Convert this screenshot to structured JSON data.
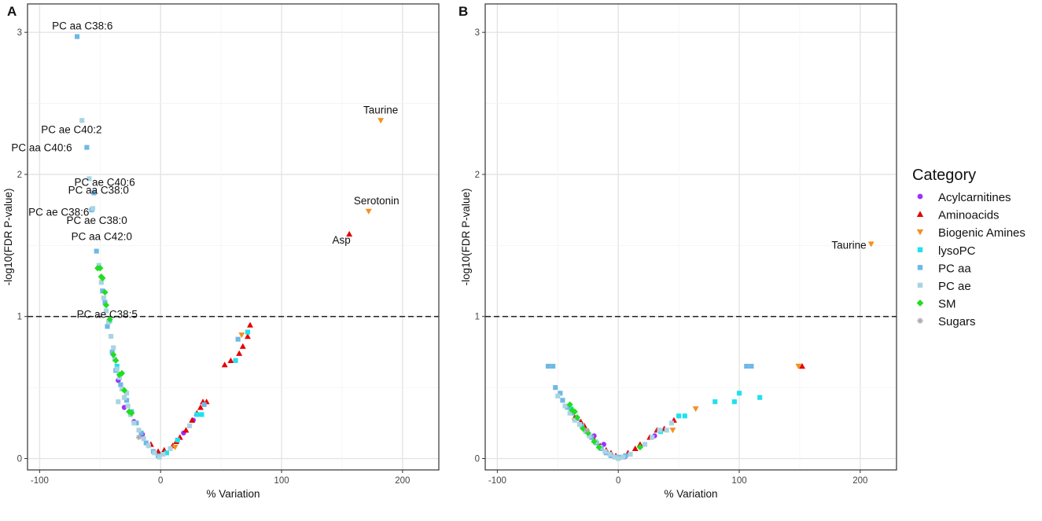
{
  "legend": {
    "title": "Category",
    "entries": [
      {
        "key": "Acylcarnitines",
        "label": "Acylcarnitines",
        "color": "#9B30FF",
        "shape": "circle"
      },
      {
        "key": "Aminoacids",
        "label": "Aminoacids",
        "color": "#E60000",
        "shape": "triangle-up"
      },
      {
        "key": "Biogenic Amines",
        "label": "Biogenic Amines",
        "color": "#F5901E",
        "shape": "triangle-down"
      },
      {
        "key": "lysoPC",
        "label": "lysoPC",
        "color": "#22E0EE",
        "shape": "square"
      },
      {
        "key": "PC aa",
        "label": "PC aa",
        "color": "#6FB8E6",
        "shape": "square"
      },
      {
        "key": "PC ae",
        "label": "PC ae",
        "color": "#A9D4E2",
        "shape": "square"
      },
      {
        "key": "SM",
        "label": "SM",
        "color": "#22DD22",
        "shape": "diamond"
      },
      {
        "key": "Sugars",
        "label": "Sugars",
        "color": "#AAAAAA",
        "shape": "asterisk"
      }
    ]
  },
  "chart_data": [
    {
      "panel": "A",
      "type": "scatter",
      "xlabel": "% Variation",
      "ylabel": "-log10(FDR P-value)",
      "xlim": [
        -110,
        230
      ],
      "ylim": [
        -0.08,
        3.2
      ],
      "xticks": [
        -100,
        0,
        100,
        200
      ],
      "xtick_labels": [
        "-100",
        "0",
        "100",
        "200"
      ],
      "yticks": [
        0,
        1,
        2,
        3
      ],
      "ytick_labels": [
        "0",
        "1",
        "2",
        "3"
      ],
      "threshold": 1,
      "series": [
        {
          "category": "Acylcarnitines",
          "points": [
            [
              -35,
              0.55
            ],
            [
              -15,
              0.17
            ],
            [
              19,
              0.18
            ],
            [
              27,
              0.27
            ],
            [
              -22,
              0.26
            ],
            [
              -30,
              0.36
            ]
          ]
        },
        {
          "category": "Aminoacids",
          "points": [
            [
              -8,
              0.1
            ],
            [
              -2,
              0.05
            ],
            [
              3,
              0.06
            ],
            [
              10,
              0.09
            ],
            [
              13,
              0.12
            ],
            [
              16,
              0.15
            ],
            [
              21,
              0.2
            ],
            [
              26,
              0.27
            ],
            [
              30,
              0.32
            ],
            [
              33,
              0.36
            ],
            [
              35,
              0.4
            ],
            [
              38,
              0.4
            ],
            [
              53,
              0.66
            ],
            [
              58,
              0.69
            ],
            [
              65,
              0.74
            ],
            [
              68,
              0.79
            ],
            [
              72,
              0.86
            ],
            [
              74,
              0.94
            ],
            [
              156,
              1.58
            ]
          ]
        },
        {
          "category": "Biogenic Amines",
          "points": [
            [
              12,
              0.08
            ],
            [
              -25,
              0.31
            ],
            [
              67,
              0.87
            ],
            [
              172,
              1.74
            ],
            [
              182,
              2.38
            ]
          ]
        },
        {
          "category": "lysoPC",
          "points": [
            [
              5,
              0.04
            ],
            [
              14,
              0.13
            ],
            [
              30,
              0.31
            ],
            [
              34,
              0.31
            ],
            [
              62,
              0.69
            ],
            [
              72,
              0.89
            ],
            [
              -42,
              0.97
            ],
            [
              -36,
              0.65
            ]
          ]
        },
        {
          "category": "PC aa",
          "points": [
            [
              -69,
              2.97
            ],
            [
              -61,
              2.19
            ],
            [
              -57,
              1.75
            ],
            [
              -55,
              1.87
            ],
            [
              -53,
              1.46
            ],
            [
              -48,
              1.18
            ],
            [
              -46,
              1.1
            ],
            [
              -44,
              0.93
            ],
            [
              -40,
              0.75
            ],
            [
              -37,
              0.62
            ],
            [
              -33,
              0.52
            ],
            [
              -28,
              0.41
            ],
            [
              -24,
              0.33
            ],
            [
              -20,
              0.25
            ],
            [
              -16,
              0.18
            ],
            [
              -12,
              0.11
            ],
            [
              -6,
              0.05
            ],
            [
              -2,
              0.02
            ],
            [
              36,
              0.38
            ],
            [
              64,
              0.84
            ]
          ]
        },
        {
          "category": "PC ae",
          "points": [
            [
              -65,
              2.38
            ],
            [
              -59,
              1.97
            ],
            [
              -56,
              1.76
            ],
            [
              -51,
              1.36
            ],
            [
              -49,
              1.24
            ],
            [
              -47,
              1.13
            ],
            [
              -45,
              1.04
            ],
            [
              -43,
              0.96
            ],
            [
              -41,
              0.86
            ],
            [
              -39,
              0.78
            ],
            [
              -38,
              0.7
            ],
            [
              -36,
              0.63
            ],
            [
              -34,
              0.57
            ],
            [
              -32,
              0.49
            ],
            [
              -30,
              0.43
            ],
            [
              -27,
              0.37
            ],
            [
              -25,
              0.31
            ],
            [
              -22,
              0.25
            ],
            [
              -18,
              0.2
            ],
            [
              -14,
              0.14
            ],
            [
              -10,
              0.09
            ],
            [
              -5,
              0.04
            ],
            [
              -1,
              0.01
            ],
            [
              2,
              0.03
            ],
            [
              8,
              0.07
            ],
            [
              24,
              0.23
            ],
            [
              -28,
              0.46
            ],
            [
              -35,
              0.4
            ]
          ]
        },
        {
          "category": "SM",
          "points": [
            [
              -52,
              1.34
            ],
            [
              -50,
              1.34
            ],
            [
              -49,
              1.28
            ],
            [
              -48,
              1.27
            ],
            [
              -46,
              1.17
            ],
            [
              -45,
              1.08
            ],
            [
              -42,
              0.98
            ],
            [
              -39,
              0.73
            ],
            [
              -37,
              0.69
            ],
            [
              -34,
              0.59
            ],
            [
              -32,
              0.6
            ],
            [
              -30,
              0.48
            ],
            [
              -26,
              0.33
            ],
            [
              -24,
              0.32
            ]
          ]
        },
        {
          "category": "Sugars",
          "points": [
            [
              -18,
              0.15
            ]
          ]
        }
      ],
      "annotations": [
        {
          "text": "PC aa C38:6",
          "x": -69,
          "y": 2.97
        },
        {
          "text": "Taurine",
          "x": 182,
          "y": 2.38
        },
        {
          "text": "PC ae C40:2",
          "x": -65,
          "y": 2.38
        },
        {
          "text": "PC aa C40:6",
          "x": -61,
          "y": 2.19
        },
        {
          "text": "PC ae C40:6",
          "x": -59,
          "y": 1.97
        },
        {
          "text": "PC aa C38:0",
          "x": -55,
          "y": 1.87
        },
        {
          "text": "PC ae C38:6",
          "x": -56,
          "y": 1.76
        },
        {
          "text": "Serotonin",
          "x": 172,
          "y": 1.74
        },
        {
          "text": "PC ae C38:0",
          "x": -57,
          "y": 1.75
        },
        {
          "text": "Asp",
          "x": 156,
          "y": 1.58
        },
        {
          "text": "PC aa C42:0",
          "x": -53,
          "y": 1.46
        },
        {
          "text": "PC ae C38:5",
          "x": -42,
          "y": 0.98
        }
      ]
    },
    {
      "panel": "B",
      "type": "scatter",
      "xlabel": "% Variation",
      "ylabel": "-log10(FDR P-value)",
      "xlim": [
        -110,
        230
      ],
      "ylim": [
        -0.08,
        3.2
      ],
      "xticks": [
        -100,
        0,
        100,
        200
      ],
      "xtick_labels": [
        "-100",
        "0",
        "100",
        "200"
      ],
      "yticks": [
        0,
        1,
        2,
        3
      ],
      "ytick_labels": [
        "0",
        "1",
        "2",
        "3"
      ],
      "threshold": 1,
      "series": [
        {
          "category": "Acylcarnitines",
          "points": [
            [
              -12,
              0.1
            ],
            [
              30,
              0.16
            ],
            [
              -20,
              0.16
            ],
            [
              5,
              0.01
            ]
          ]
        },
        {
          "category": "Aminoacids",
          "points": [
            [
              -36,
              0.29
            ],
            [
              -31,
              0.26
            ],
            [
              -28,
              0.23
            ],
            [
              -21,
              0.15
            ],
            [
              -15,
              0.09
            ],
            [
              -10,
              0.06
            ],
            [
              -6,
              0.04
            ],
            [
              -2,
              0.02
            ],
            [
              8,
              0.04
            ],
            [
              14,
              0.07
            ],
            [
              18,
              0.1
            ],
            [
              26,
              0.15
            ],
            [
              32,
              0.2
            ],
            [
              38,
              0.21
            ],
            [
              46,
              0.27
            ],
            [
              152,
              0.65
            ]
          ]
        },
        {
          "category": "Biogenic Amines",
          "points": [
            [
              45,
              0.2
            ],
            [
              64,
              0.35
            ],
            [
              149,
              0.65
            ],
            [
              209,
              1.51
            ]
          ]
        },
        {
          "category": "lysoPC",
          "points": [
            [
              50,
              0.3
            ],
            [
              55,
              0.3
            ],
            [
              80,
              0.4
            ],
            [
              96,
              0.4
            ],
            [
              100,
              0.46
            ],
            [
              117,
              0.43
            ],
            [
              35,
              0.19
            ],
            [
              -39,
              0.35
            ]
          ]
        },
        {
          "category": "PC aa",
          "points": [
            [
              -58,
              0.65
            ],
            [
              -54,
              0.65
            ],
            [
              -52,
              0.5
            ],
            [
              -48,
              0.46
            ],
            [
              -46,
              0.41
            ],
            [
              -42,
              0.36
            ],
            [
              -38,
              0.32
            ],
            [
              -34,
              0.28
            ],
            [
              -30,
              0.23
            ],
            [
              -26,
              0.19
            ],
            [
              -22,
              0.15
            ],
            [
              -18,
              0.11
            ],
            [
              -14,
              0.07
            ],
            [
              -10,
              0.04
            ],
            [
              -6,
              0.02
            ],
            [
              -2,
              0.01
            ],
            [
              2,
              0.01
            ],
            [
              6,
              0.02
            ],
            [
              106,
              0.65
            ],
            [
              110,
              0.65
            ]
          ]
        },
        {
          "category": "PC ae",
          "points": [
            [
              -50,
              0.44
            ],
            [
              -44,
              0.37
            ],
            [
              -40,
              0.32
            ],
            [
              -36,
              0.27
            ],
            [
              -32,
              0.24
            ],
            [
              -27,
              0.19
            ],
            [
              -24,
              0.16
            ],
            [
              -19,
              0.12
            ],
            [
              -15,
              0.08
            ],
            [
              -11,
              0.05
            ],
            [
              -7,
              0.03
            ],
            [
              -3,
              0.01
            ],
            [
              0,
              0.0
            ],
            [
              4,
              0.01
            ],
            [
              10,
              0.03
            ],
            [
              22,
              0.1
            ],
            [
              28,
              0.15
            ],
            [
              34,
              0.2
            ],
            [
              40,
              0.2
            ],
            [
              44,
              0.25
            ]
          ]
        },
        {
          "category": "SM",
          "points": [
            [
              -40,
              0.38
            ],
            [
              -38,
              0.34
            ],
            [
              -36,
              0.33
            ],
            [
              -34,
              0.29
            ],
            [
              -29,
              0.21
            ],
            [
              -25,
              0.18
            ],
            [
              -20,
              0.12
            ],
            [
              -16,
              0.08
            ],
            [
              18,
              0.08
            ]
          ]
        },
        {
          "category": "Sugars",
          "points": [
            [
              -26,
              0.2
            ]
          ]
        }
      ],
      "annotations": [
        {
          "text": "Taurine",
          "x": 209,
          "y": 1.51
        }
      ]
    }
  ],
  "panel_labels": [
    "A",
    "B"
  ]
}
